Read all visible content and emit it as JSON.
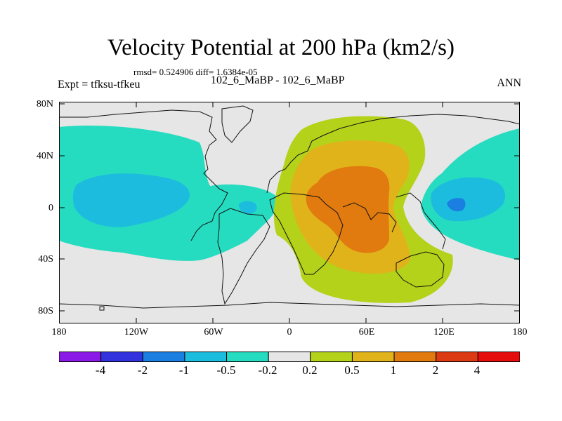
{
  "title": "Velocity Potential at 200 hPa (km2/s)",
  "stats_text": "rmsd= 0.524906 diff= 1.6384e-05",
  "left_label": "Expt = tfksu-tfkeu",
  "center_label": "102_6_MaBP - 102_6_MaBP",
  "right_label": "ANN",
  "y_ticks": [
    "80N",
    "40N",
    "0",
    "40S",
    "80S"
  ],
  "x_ticks": [
    "180",
    "120W",
    "60W",
    "0",
    "60E",
    "120E",
    "180"
  ],
  "colorbar": {
    "labels": [
      "-4",
      "-2",
      "-1",
      "-0.5",
      "-0.2",
      "0.2",
      "0.5",
      "1",
      "2",
      "4"
    ],
    "colors": [
      "#8c1ae6",
      "#3333dd",
      "#1a7fe0",
      "#1cbcde",
      "#26dcc0",
      "#e6e6e6",
      "#b4d21a",
      "#e1b31a",
      "#e17a0f",
      "#dc3a12",
      "#e60d0d"
    ]
  },
  "fill_colors": {
    "background": "#e6e6e6",
    "teal": "#26dcc0",
    "cyan": "#1cbcde",
    "blue": "#1a7fe0",
    "yellowgreen": "#b4d21a",
    "gold": "#e1b31a",
    "orange": "#e17a0f"
  }
}
